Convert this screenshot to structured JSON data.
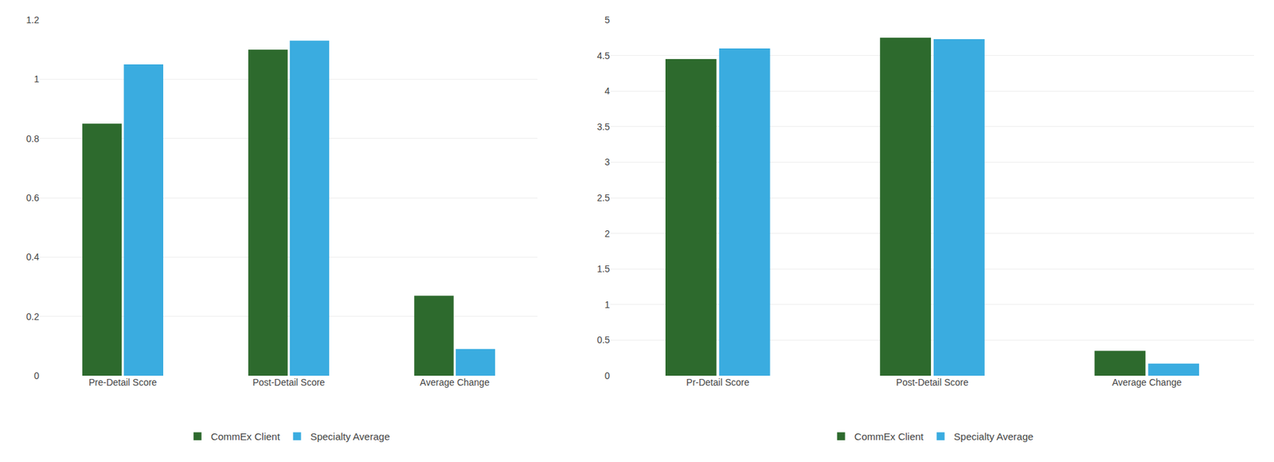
{
  "chart_data": [
    {
      "type": "bar",
      "categories": [
        "Pre-Detail Score",
        "Post-Detail Score",
        "Average Change"
      ],
      "series": [
        {
          "name": "CommEx Client",
          "color": "#2d6a2d",
          "values": [
            0.85,
            1.1,
            0.27
          ]
        },
        {
          "name": "Specialty Average",
          "color": "#3aace0",
          "values": [
            1.05,
            1.13,
            0.09
          ]
        }
      ],
      "ylim": [
        0,
        1.2
      ],
      "yticks": [
        0,
        0.2,
        0.4,
        0.6,
        0.8,
        1,
        1.2
      ],
      "grid": true,
      "legend": "bottom"
    },
    {
      "type": "bar",
      "categories": [
        "Pr-Detail Score",
        "Post-Detail Score",
        "Average Change"
      ],
      "series": [
        {
          "name": "CommEx Client",
          "color": "#2d6a2d",
          "values": [
            4.45,
            4.75,
            0.35
          ]
        },
        {
          "name": "Specialty Average",
          "color": "#3aace0",
          "values": [
            4.6,
            4.73,
            0.17
          ]
        }
      ],
      "ylim": [
        0,
        5
      ],
      "yticks": [
        0,
        0.5,
        1,
        1.5,
        2,
        2.5,
        3,
        3.5,
        4,
        4.5,
        5
      ],
      "grid": true,
      "legend": "bottom"
    }
  ]
}
